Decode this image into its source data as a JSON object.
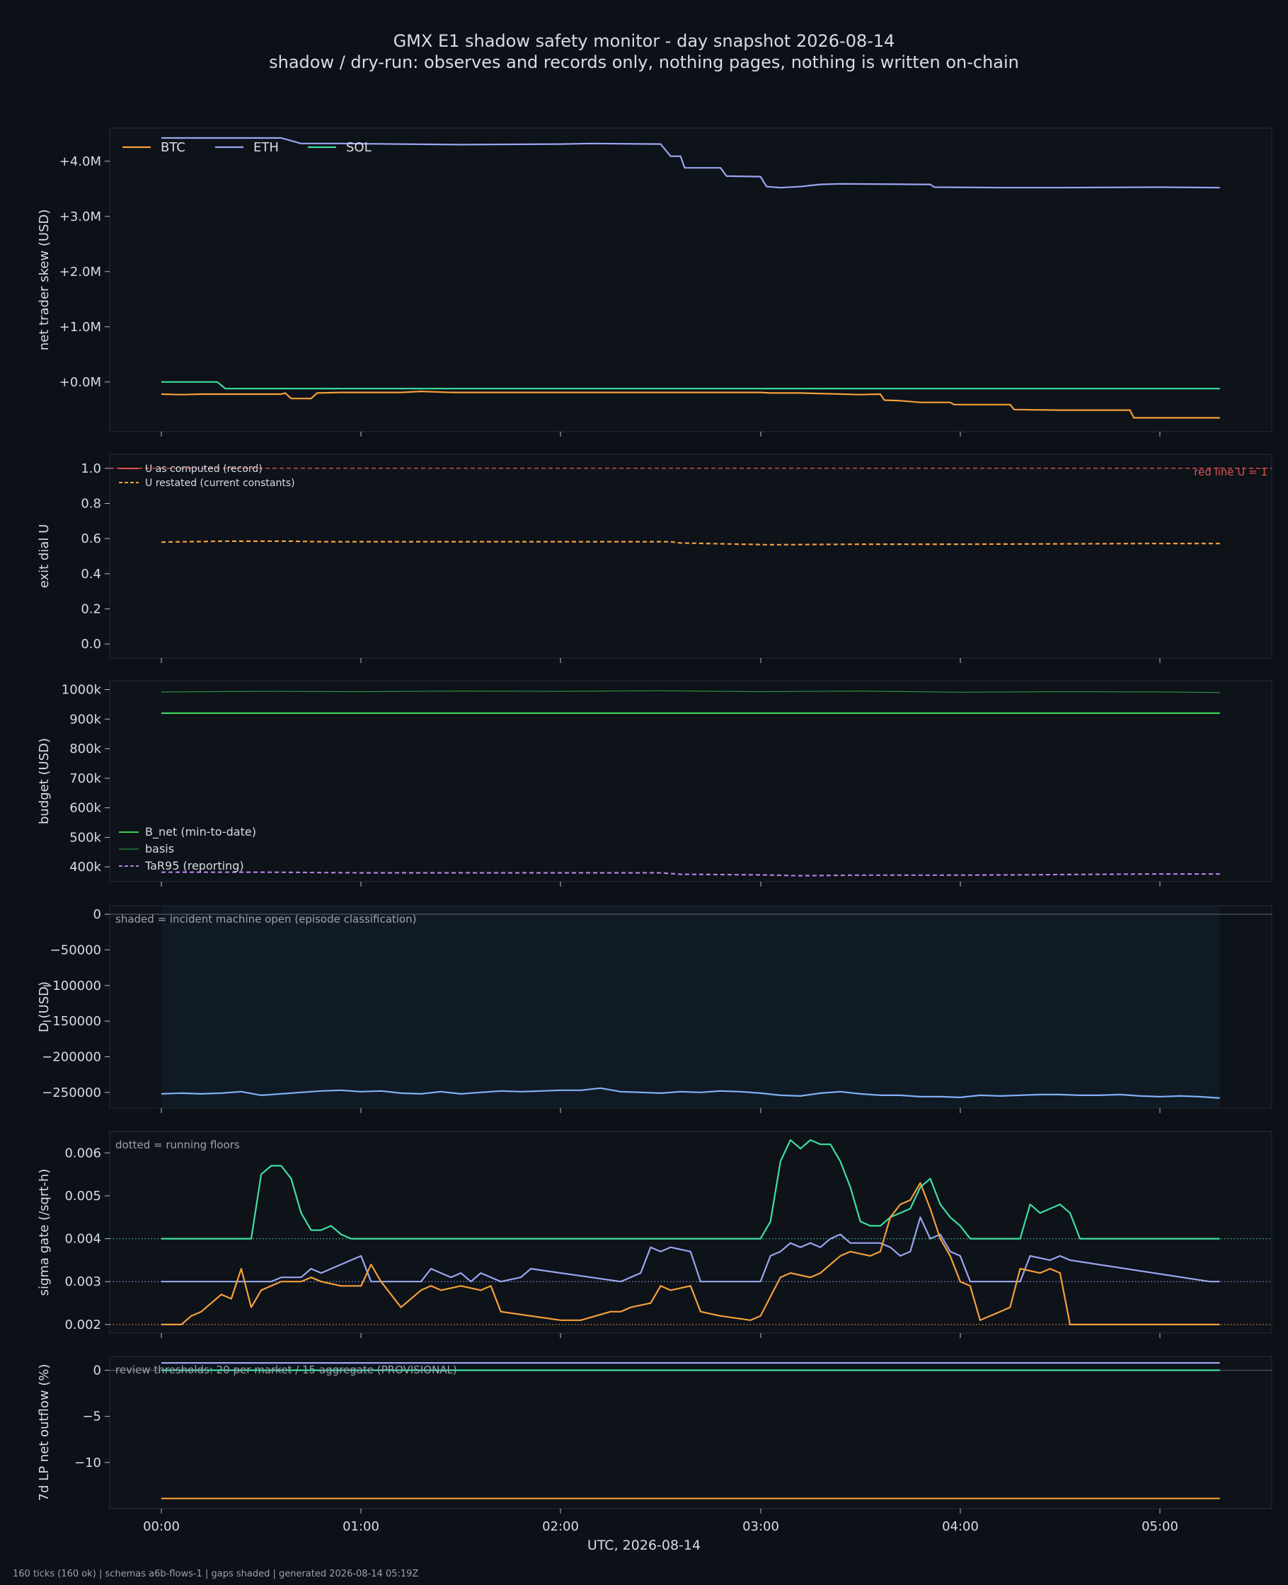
{
  "title": "GMX E1 shadow safety monitor - day snapshot 2026-08-14",
  "subtitle": "shadow / dry-run: observes and records only, nothing pages, nothing is written on-chain",
  "footer": "160 ticks (160 ok) | schemas a6b-flows-1 | gaps shaded | generated 2026-08-14 05:19Z",
  "xlabel": "UTC, 2026-08-14",
  "xticks": [
    "00:00",
    "01:00",
    "02:00",
    "03:00",
    "04:00",
    "05:00"
  ],
  "colors": {
    "background": "#0c1017",
    "btc": "#f5a03a",
    "eth": "#9aa6f0",
    "sol": "#3de0a0",
    "green": "#3ccf55",
    "red": "#e05252",
    "blue": "#7fb0f5",
    "purple": "#b07fe0",
    "orange": "#f08b3a"
  },
  "chart_data": [
    {
      "id": "skew",
      "type": "line",
      "ylabel": "net trader skew (USD)",
      "ylim": [
        -900000,
        4600000
      ],
      "yticks": [
        {
          "v": 0,
          "label": "+0.0M"
        },
        {
          "v": 1000000,
          "label": "+1.0M"
        },
        {
          "v": 2000000,
          "label": "+2.0M"
        },
        {
          "v": 3000000,
          "label": "+3.0M"
        },
        {
          "v": 4000000,
          "label": "+4.0M"
        }
      ],
      "legend": "top-left",
      "series": [
        {
          "name": "BTC",
          "color": "#f5a03a",
          "x": [
            0,
            0.1,
            0.2,
            0.6,
            0.62,
            0.65,
            0.75,
            0.78,
            0.9,
            1.2,
            1.3,
            1.45,
            2.5,
            3.0,
            3.05,
            3.2,
            3.5,
            3.6,
            3.62,
            3.7,
            3.8,
            3.95,
            3.97,
            4.25,
            4.27,
            4.5,
            4.85,
            4.87,
            5.3
          ],
          "y": [
            -220000,
            -230000,
            -220000,
            -220000,
            -200000,
            -300000,
            -300000,
            -200000,
            -190000,
            -190000,
            -170000,
            -190000,
            -190000,
            -190000,
            -200000,
            -200000,
            -230000,
            -220000,
            -330000,
            -340000,
            -370000,
            -370000,
            -410000,
            -410000,
            -500000,
            -510000,
            -510000,
            -650000,
            -650000
          ]
        },
        {
          "name": "ETH",
          "color": "#9aa6f0",
          "x": [
            0,
            0.6,
            0.62,
            0.7,
            0.9,
            1.2,
            1.5,
            2.0,
            2.15,
            2.5,
            2.55,
            2.6,
            2.62,
            2.8,
            2.83,
            3.0,
            3.03,
            3.1,
            3.2,
            3.25,
            3.3,
            3.4,
            3.8,
            3.85,
            3.87,
            4.2,
            4.5,
            5.0,
            5.3
          ],
          "y": [
            4420000,
            4420000,
            4400000,
            4320000,
            4320000,
            4310000,
            4300000,
            4310000,
            4320000,
            4310000,
            4090000,
            4090000,
            3880000,
            3880000,
            3730000,
            3720000,
            3540000,
            3520000,
            3540000,
            3560000,
            3580000,
            3590000,
            3580000,
            3580000,
            3530000,
            3520000,
            3520000,
            3530000,
            3520000
          ]
        },
        {
          "name": "SOL",
          "color": "#3de0a0",
          "x": [
            0,
            0.28,
            0.32,
            5.3
          ],
          "y": [
            0,
            0,
            -120000,
            -120000
          ]
        }
      ]
    },
    {
      "id": "udial",
      "type": "line",
      "ylabel": "exit dial U",
      "ylim": [
        -0.08,
        1.08
      ],
      "yticks": [
        {
          "v": 0,
          "label": "0.0"
        },
        {
          "v": 0.2,
          "label": "0.2"
        },
        {
          "v": 0.4,
          "label": "0.4"
        },
        {
          "v": 0.6,
          "label": "0.6"
        },
        {
          "v": 0.8,
          "label": "0.8"
        },
        {
          "v": 1.0,
          "label": "1.0"
        }
      ],
      "legend": "top-left",
      "annotation": "red line U = 1",
      "hline": {
        "value": 1.0,
        "color": "#e05252"
      },
      "series": [
        {
          "name": "U as computed (record)",
          "color": "#e05252",
          "legend_only": true,
          "x": [],
          "y": []
        },
        {
          "name": "U restated (current constants)",
          "color": "#f5a03a",
          "dashed": true,
          "x": [
            0,
            0.3,
            0.65,
            0.8,
            2.55,
            2.6,
            3.05,
            3.5,
            4.0,
            5.0,
            5.3
          ],
          "y": [
            0.58,
            0.585,
            0.585,
            0.582,
            0.582,
            0.575,
            0.565,
            0.568,
            0.568,
            0.572,
            0.572
          ]
        }
      ]
    },
    {
      "id": "budget",
      "type": "line",
      "ylabel": "budget (USD)",
      "ylim": [
        350000,
        1030000
      ],
      "yticks": [
        {
          "v": 400000,
          "label": "400k"
        },
        {
          "v": 500000,
          "label": "500k"
        },
        {
          "v": 600000,
          "label": "600k"
        },
        {
          "v": 700000,
          "label": "700k"
        },
        {
          "v": 800000,
          "label": "800k"
        },
        {
          "v": 900000,
          "label": "900k"
        },
        {
          "v": 1000000,
          "label": "1000k"
        }
      ],
      "legend": "bottom-left",
      "series": [
        {
          "name": "B_net (min-to-date)",
          "color": "#3ccf55",
          "x": [
            0,
            5.3
          ],
          "y": [
            920000,
            920000
          ]
        },
        {
          "name": "basis",
          "color": "#2f8f40",
          "thin": true,
          "x": [
            0,
            0.5,
            1,
            1.5,
            2,
            2.5,
            3,
            3.5,
            4,
            4.5,
            5,
            5.3
          ],
          "y": [
            992000,
            994000,
            993000,
            995000,
            994000,
            996000,
            993000,
            995000,
            991000,
            993000,
            992000,
            990000
          ]
        },
        {
          "name": "TaR95 (reporting)",
          "color": "#b07fe0",
          "dashed": true,
          "x": [
            0,
            0.5,
            1,
            2,
            2.5,
            2.6,
            3,
            3.2,
            3.5,
            4,
            4.5,
            5,
            5.3
          ],
          "y": [
            382000,
            382000,
            380000,
            380000,
            380000,
            375000,
            373000,
            370000,
            372000,
            372000,
            374000,
            376000,
            376000
          ]
        }
      ]
    },
    {
      "id": "dusd",
      "type": "line",
      "ylabel": "D (USD)",
      "ylim": [
        -272000,
        12000
      ],
      "yticks": [
        {
          "v": 0,
          "label": "0"
        },
        {
          "v": -50000,
          "label": "−50000"
        },
        {
          "v": -100000,
          "label": "−100000"
        },
        {
          "v": -150000,
          "label": "−150000"
        },
        {
          "v": -200000,
          "label": "−200000"
        },
        {
          "v": -250000,
          "label": "−250000"
        }
      ],
      "annotation": "shaded = incident machine open (episode classification)",
      "shade": [
        0,
        5.3
      ],
      "hline": {
        "value": 0,
        "color": "#4a5260"
      },
      "series": [
        {
          "name": "D",
          "color": "#7fb0f5",
          "x": [
            0,
            0.1,
            0.2,
            0.3,
            0.4,
            0.5,
            0.6,
            0.7,
            0.8,
            0.9,
            1.0,
            1.1,
            1.2,
            1.3,
            1.4,
            1.5,
            1.6,
            1.7,
            1.8,
            1.9,
            2.0,
            2.1,
            2.2,
            2.3,
            2.4,
            2.5,
            2.6,
            2.7,
            2.8,
            2.9,
            3.0,
            3.1,
            3.2,
            3.3,
            3.4,
            3.5,
            3.6,
            3.7,
            3.8,
            3.9,
            4.0,
            4.1,
            4.2,
            4.3,
            4.4,
            4.5,
            4.6,
            4.7,
            4.8,
            4.9,
            5.0,
            5.1,
            5.2,
            5.3
          ],
          "y": [
            -252000,
            -251000,
            -252000,
            -251000,
            -249000,
            -254000,
            -252000,
            -250000,
            -248000,
            -247000,
            -249000,
            -248000,
            -251000,
            -252000,
            -249000,
            -252000,
            -250000,
            -248000,
            -249000,
            -248000,
            -247000,
            -247000,
            -244000,
            -249000,
            -250000,
            -251000,
            -249000,
            -250000,
            -248000,
            -249000,
            -251000,
            -254000,
            -255000,
            -251000,
            -249000,
            -252000,
            -254000,
            -254000,
            -256000,
            -256000,
            -257000,
            -254000,
            -255000,
            -254000,
            -253000,
            -253000,
            -254000,
            -254000,
            -253000,
            -255000,
            -256000,
            -255000,
            -256000,
            -258000
          ]
        }
      ]
    },
    {
      "id": "sigma",
      "type": "line",
      "ylabel": "sigma gate (/sqrt-h)",
      "ylim": [
        0.0018,
        0.0065
      ],
      "yticks": [
        {
          "v": 0.002,
          "label": "0.002"
        },
        {
          "v": 0.003,
          "label": "0.003"
        },
        {
          "v": 0.004,
          "label": "0.004"
        },
        {
          "v": 0.005,
          "label": "0.005"
        },
        {
          "v": 0.006,
          "label": "0.006"
        }
      ],
      "annotation": "dotted = running floors",
      "floors": [
        {
          "value": 0.004,
          "color": "#3de0a0"
        },
        {
          "value": 0.003,
          "color": "#9aa6f0"
        },
        {
          "value": 0.002,
          "color": "#f5a03a"
        }
      ],
      "series": [
        {
          "name": "SOL",
          "color": "#3de0a0",
          "x": [
            0,
            0.45,
            0.5,
            0.55,
            0.6,
            0.65,
            0.7,
            0.75,
            0.8,
            0.85,
            0.9,
            0.95,
            3.0,
            3.05,
            3.1,
            3.15,
            3.2,
            3.25,
            3.3,
            3.35,
            3.4,
            3.45,
            3.5,
            3.55,
            3.6,
            3.65,
            3.7,
            3.75,
            3.8,
            3.85,
            3.9,
            3.95,
            4.0,
            4.05,
            4.3,
            4.35,
            4.4,
            4.5,
            4.55,
            4.6,
            5.3
          ],
          "y": [
            0.004,
            0.004,
            0.0055,
            0.0057,
            0.0057,
            0.0054,
            0.0046,
            0.0042,
            0.0042,
            0.0043,
            0.0041,
            0.004,
            0.004,
            0.0044,
            0.0058,
            0.0063,
            0.0061,
            0.0063,
            0.0062,
            0.0062,
            0.0058,
            0.0052,
            0.0044,
            0.0043,
            0.0043,
            0.0045,
            0.0046,
            0.0047,
            0.0052,
            0.0054,
            0.0048,
            0.0045,
            0.0043,
            0.004,
            0.004,
            0.0048,
            0.0046,
            0.0048,
            0.0046,
            0.004,
            0.004
          ]
        },
        {
          "name": "ETH",
          "color": "#9aa6f0",
          "x": [
            0,
            0.55,
            0.6,
            0.7,
            0.75,
            0.8,
            0.85,
            0.9,
            0.95,
            1.0,
            1.05,
            1.1,
            1.3,
            1.35,
            1.45,
            1.5,
            1.55,
            1.6,
            1.7,
            1.8,
            1.85,
            2.3,
            2.4,
            2.45,
            2.5,
            2.55,
            2.65,
            2.7,
            3.0,
            3.05,
            3.1,
            3.15,
            3.2,
            3.25,
            3.3,
            3.35,
            3.4,
            3.45,
            3.6,
            3.65,
            3.7,
            3.75,
            3.8,
            3.85,
            3.9,
            3.95,
            4.0,
            4.05,
            4.3,
            4.35,
            4.45,
            4.5,
            4.55,
            5.25,
            5.3
          ],
          "y": [
            0.003,
            0.003,
            0.0031,
            0.0031,
            0.0033,
            0.0032,
            0.0033,
            0.0034,
            0.0035,
            0.0036,
            0.003,
            0.003,
            0.003,
            0.0033,
            0.0031,
            0.0032,
            0.003,
            0.0032,
            0.003,
            0.0031,
            0.0033,
            0.003,
            0.0032,
            0.0038,
            0.0037,
            0.0038,
            0.0037,
            0.003,
            0.003,
            0.0036,
            0.0037,
            0.0039,
            0.0038,
            0.0039,
            0.0038,
            0.004,
            0.0041,
            0.0039,
            0.0039,
            0.0038,
            0.0036,
            0.0037,
            0.0045,
            0.004,
            0.0041,
            0.0037,
            0.0036,
            0.003,
            0.003,
            0.0036,
            0.0035,
            0.0036,
            0.0035,
            0.003,
            0.003
          ]
        },
        {
          "name": "BTC",
          "color": "#f5a03a",
          "x": [
            0,
            0.1,
            0.15,
            0.2,
            0.3,
            0.35,
            0.4,
            0.45,
            0.5,
            0.55,
            0.6,
            0.7,
            0.75,
            0.8,
            0.9,
            1.0,
            1.05,
            1.1,
            1.2,
            1.3,
            1.35,
            1.4,
            1.5,
            1.6,
            1.65,
            1.7,
            2.0,
            2.05,
            2.1,
            2.25,
            2.3,
            2.35,
            2.45,
            2.5,
            2.55,
            2.65,
            2.7,
            2.8,
            2.95,
            3.0,
            3.1,
            3.15,
            3.25,
            3.3,
            3.4,
            3.45,
            3.55,
            3.6,
            3.65,
            3.7,
            3.75,
            3.8,
            3.85,
            3.9,
            3.95,
            4.0,
            4.05,
            4.1,
            4.15,
            4.2,
            4.25,
            4.3,
            4.4,
            4.45,
            4.5,
            4.55,
            5.3
          ],
          "y": [
            0.002,
            0.002,
            0.0022,
            0.0023,
            0.0027,
            0.0026,
            0.0033,
            0.0024,
            0.0028,
            0.0029,
            0.003,
            0.003,
            0.0031,
            0.003,
            0.0029,
            0.0029,
            0.0034,
            0.003,
            0.0024,
            0.0028,
            0.0029,
            0.0028,
            0.0029,
            0.0028,
            0.0029,
            0.0023,
            0.0021,
            0.0021,
            0.0021,
            0.0023,
            0.0023,
            0.0024,
            0.0025,
            0.0029,
            0.0028,
            0.0029,
            0.0023,
            0.0022,
            0.0021,
            0.0022,
            0.0031,
            0.0032,
            0.0031,
            0.0032,
            0.0036,
            0.0037,
            0.0036,
            0.0037,
            0.0045,
            0.0048,
            0.0049,
            0.0053,
            0.0047,
            0.004,
            0.0036,
            0.003,
            0.0029,
            0.0021,
            0.0022,
            0.0023,
            0.0024,
            0.0033,
            0.0032,
            0.0033,
            0.0032,
            0.002,
            0.002
          ]
        }
      ]
    },
    {
      "id": "lp",
      "type": "line",
      "ylabel": "7d LP net outflow (%)",
      "ylim": [
        -15,
        1.5
      ],
      "yticks": [
        {
          "v": 0,
          "label": "0"
        },
        {
          "v": -5,
          "label": "−5"
        },
        {
          "v": -10,
          "label": "−10"
        }
      ],
      "annotation": "review thresholds: 20 per market / 15 aggregate (PROVISIONAL)",
      "hline": {
        "value": 0,
        "color": "#4a5260"
      },
      "series": [
        {
          "name": "ETH",
          "color": "#9aa6f0",
          "x": [
            0,
            5.3
          ],
          "y": [
            0.8,
            0.8
          ]
        },
        {
          "name": "SOL",
          "color": "#3de0a0",
          "x": [
            0,
            5.3
          ],
          "y": [
            0,
            0
          ]
        },
        {
          "name": "BTC",
          "color": "#f5a03a",
          "x": [
            0,
            5.3
          ],
          "y": [
            -13.9,
            -13.9
          ]
        }
      ]
    }
  ]
}
